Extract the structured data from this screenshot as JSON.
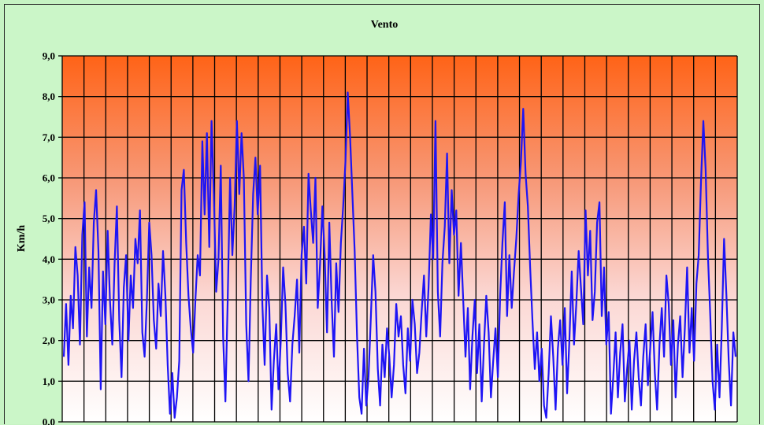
{
  "chart_data": {
    "type": "line",
    "title": "Vento",
    "xlabel": "",
    "ylabel": "Km/h",
    "ylim": [
      0,
      9
    ],
    "yticks": [
      "0,0",
      "1,0",
      "2,0",
      "3,0",
      "4,0",
      "5,0",
      "6,0",
      "7,0",
      "8,0",
      "9,0"
    ],
    "ytick_values": [
      0,
      1,
      2,
      3,
      4,
      5,
      6,
      7,
      8,
      9
    ],
    "vertical_gridlines": 31,
    "grid": true,
    "colors": {
      "line": "#1e14f5",
      "plot_top": "#ff6317",
      "plot_bottom": "#ffffff",
      "background": "#cbf6c8",
      "grid": "#000000"
    },
    "series": [
      {
        "values": [
          1.6,
          2.9,
          1.4,
          3.1,
          2.3,
          4.3,
          3.6,
          1.9,
          4.6,
          5.4,
          2.1,
          3.8,
          2.8,
          4.9,
          5.7,
          4.2,
          0.8,
          3.7,
          2.4,
          4.7,
          3.0,
          1.9,
          3.9,
          5.3,
          2.5,
          1.1,
          3.3,
          4.1,
          2.0,
          3.6,
          2.8,
          4.5,
          3.9,
          5.2,
          2.2,
          1.6,
          3.0,
          4.9,
          4.1,
          2.5,
          1.8,
          3.4,
          2.6,
          4.2,
          3.1,
          1.4,
          0.2,
          1.2,
          0.1,
          0.6,
          1.5,
          5.7,
          6.2,
          4.4,
          3.1,
          2.3,
          1.7,
          3.0,
          4.1,
          3.6,
          6.9,
          5.1,
          7.1,
          4.3,
          7.4,
          5.6,
          3.2,
          4.0,
          6.3,
          2.1,
          0.5,
          3.0,
          6.0,
          4.1,
          5.3,
          7.4,
          5.6,
          7.1,
          6.0,
          2.4,
          1.0,
          3.5,
          5.6,
          6.5,
          5.1,
          6.3,
          2.9,
          1.4,
          3.6,
          2.8,
          0.3,
          1.5,
          2.4,
          0.8,
          2.0,
          3.8,
          2.9,
          1.2,
          0.5,
          1.9,
          2.6,
          3.5,
          1.7,
          4.1,
          4.8,
          3.4,
          6.1,
          5.2,
          4.4,
          6.0,
          2.8,
          3.9,
          5.3,
          4.1,
          2.2,
          4.9,
          3.0,
          1.6,
          3.9,
          2.7,
          4.4,
          5.3,
          6.4,
          8.1,
          7.0,
          5.6,
          4.2,
          2.1,
          0.6,
          0.2,
          1.8,
          0.4,
          1.1,
          2.6,
          4.1,
          3.2,
          1.3,
          0.4,
          1.9,
          1.1,
          2.3,
          1.6,
          0.6,
          1.4,
          2.9,
          2.1,
          2.6,
          1.4,
          0.7,
          2.3,
          1.5,
          3.0,
          2.4,
          1.2,
          1.7,
          2.7,
          3.6,
          2.1,
          3.3,
          5.1,
          4.0,
          7.4,
          3.2,
          2.1,
          3.9,
          4.8,
          6.6,
          3.9,
          5.7,
          4.6,
          5.2,
          3.1,
          4.4,
          3.0,
          1.6,
          2.8,
          0.8,
          2.1,
          3.0,
          1.2,
          2.4,
          0.5,
          1.9,
          3.1,
          2.2,
          0.6,
          1.5,
          2.3,
          1.1,
          3.1,
          4.4,
          5.4,
          2.6,
          4.1,
          2.8,
          3.7,
          4.5,
          5.6,
          6.4,
          7.7,
          6.1,
          5.3,
          3.8,
          2.5,
          1.3,
          2.2,
          1.0,
          1.8,
          0.4,
          0.1,
          1.2,
          2.6,
          1.6,
          0.3,
          1.8,
          2.5,
          1.4,
          2.8,
          0.7,
          2.0,
          3.7,
          1.9,
          2.9,
          4.2,
          3.3,
          2.4,
          5.2,
          3.6,
          4.7,
          2.5,
          3.2,
          4.9,
          5.4,
          2.6,
          3.8,
          1.9,
          2.7,
          0.2,
          1.1,
          2.2,
          0.6,
          1.7,
          2.4,
          0.5,
          1.3,
          2.0,
          0.3,
          1.5,
          2.2,
          1.1,
          0.4,
          1.6,
          2.4,
          0.9,
          1.8,
          2.7,
          1.2,
          0.3,
          1.9,
          2.8,
          1.6,
          3.6,
          2.9,
          1.4,
          2.5,
          0.6,
          1.9,
          2.6,
          1.1,
          2.3,
          3.8,
          1.7,
          2.8,
          1.5,
          3.4,
          4.1,
          5.9,
          7.4,
          6.2,
          4.1,
          2.6,
          1.0,
          0.3,
          1.9,
          0.6,
          2.3,
          4.5,
          3.1,
          1.5,
          0.4,
          2.2,
          1.6
        ]
      }
    ]
  }
}
